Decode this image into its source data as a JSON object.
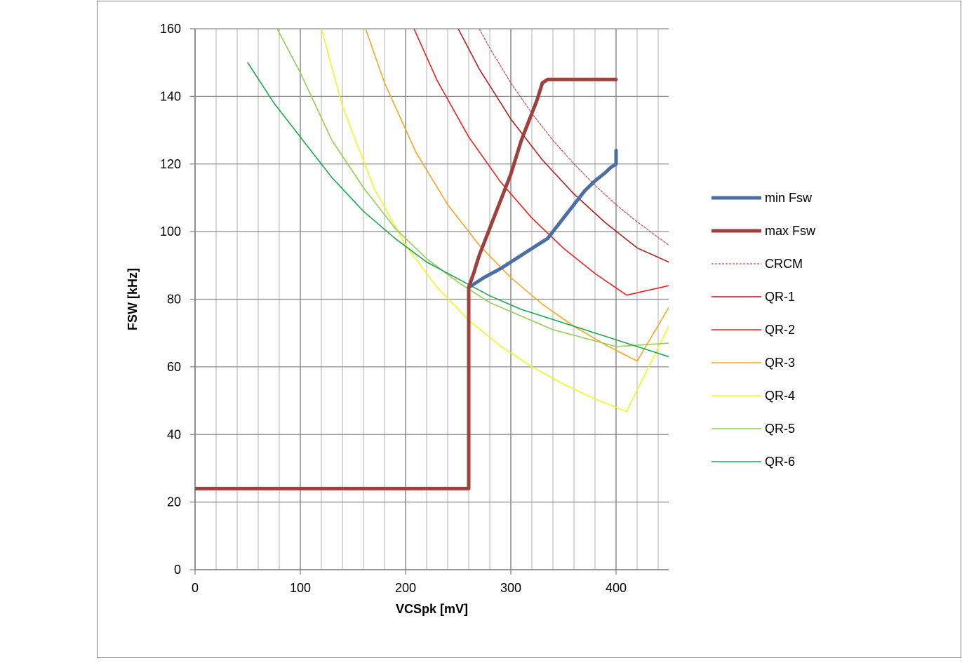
{
  "chart_data": {
    "type": "line",
    "title": "",
    "xlabel": "VCSpk [mV]",
    "ylabel": "FSW [kHz]",
    "xlim": [
      0,
      450
    ],
    "ylim": [
      0,
      160
    ],
    "x_ticks": [
      0,
      100,
      200,
      300,
      400
    ],
    "y_ticks": [
      0,
      20,
      40,
      60,
      80,
      100,
      120,
      140,
      160
    ],
    "x_minor_step": 20,
    "y_major_step": 20,
    "grid": true,
    "legend_position": "right",
    "series": [
      {
        "name": "min Fsw",
        "color": "#4a6fa5",
        "style": "thick",
        "x": [
          260,
          265,
          275,
          290,
          300,
          310,
          320,
          330,
          335,
          340,
          350,
          360,
          370,
          380,
          390,
          395,
          400,
          400
        ],
        "y": [
          83.5,
          84.5,
          86.5,
          89,
          91,
          93,
          95,
          97,
          98,
          100,
          104,
          108,
          112,
          115,
          117.5,
          119,
          120,
          124
        ]
      },
      {
        "name": "max Fsw",
        "color": "#a0403d",
        "style": "thick",
        "x": [
          0,
          260,
          260,
          265,
          270,
          275,
          280,
          285,
          290,
          295,
          300,
          305,
          310,
          315,
          320,
          325,
          330,
          335,
          350,
          400
        ],
        "y": [
          24,
          24,
          83.5,
          88,
          93,
          97,
          101,
          105,
          109,
          113,
          117,
          122,
          127,
          131,
          135,
          139,
          144,
          145,
          145,
          145
        ]
      },
      {
        "name": "CRCM",
        "color": "#c0504d",
        "style": "dotted",
        "x": [
          270,
          280,
          300,
          320,
          340,
          360,
          380,
          400,
          420,
          450
        ],
        "y": [
          160,
          154.3,
          144,
          135,
          127,
          120,
          113.7,
          108,
          102.9,
          96
        ]
      },
      {
        "name": "QR-1",
        "color": "#b41e1e",
        "style": "normal",
        "x": [
          250,
          270,
          300,
          330,
          360,
          390,
          420,
          450
        ],
        "y": [
          160,
          148.1,
          133.3,
          121.2,
          111.1,
          102.6,
          95.2,
          91
        ]
      },
      {
        "name": "QR-2",
        "color": "#ee2020",
        "style": "normal",
        "x": [
          208,
          230,
          260,
          290,
          320,
          350,
          380,
          410,
          450
        ],
        "y": [
          160,
          144.7,
          128,
          114.8,
          104,
          95.1,
          87.6,
          81.2,
          84
        ]
      },
      {
        "name": "QR-3",
        "color": "#f5a623",
        "style": "normal",
        "x": [
          162,
          180,
          210,
          240,
          270,
          300,
          330,
          360,
          390,
          420,
          450
        ],
        "y": [
          160,
          144,
          123.4,
          108,
          96,
          86.4,
          78.5,
          72,
          66.5,
          61.7,
          77.5
        ]
      },
      {
        "name": "QR-4",
        "color": "#f5f51e",
        "style": "normal",
        "x": [
          120,
          140,
          170,
          200,
          230,
          260,
          290,
          320,
          350,
          380,
          410,
          450
        ],
        "y": [
          160,
          137.1,
          112.9,
          96,
          83.5,
          73.8,
          66.2,
          60,
          54.9,
          50.5,
          46.8,
          72
        ]
      },
      {
        "name": "QR-5",
        "color": "#92d050",
        "style": "normal",
        "x": [
          78,
          100,
          130,
          160,
          190,
          220,
          250,
          280,
          310,
          340,
          370,
          400,
          450
        ],
        "y": [
          160,
          147,
          127,
          113,
          101,
          92,
          85,
          79,
          75,
          71,
          68.5,
          66,
          67
        ]
      },
      {
        "name": "QR-6",
        "color": "#1aa84a",
        "style": "normal",
        "x": [
          50,
          75,
          100,
          130,
          160,
          190,
          220,
          250,
          280,
          310,
          340,
          370,
          400,
          450
        ],
        "y": [
          150,
          138,
          128,
          116,
          106,
          98,
          91,
          86,
          81,
          77,
          74,
          71,
          68,
          63
        ]
      }
    ]
  }
}
